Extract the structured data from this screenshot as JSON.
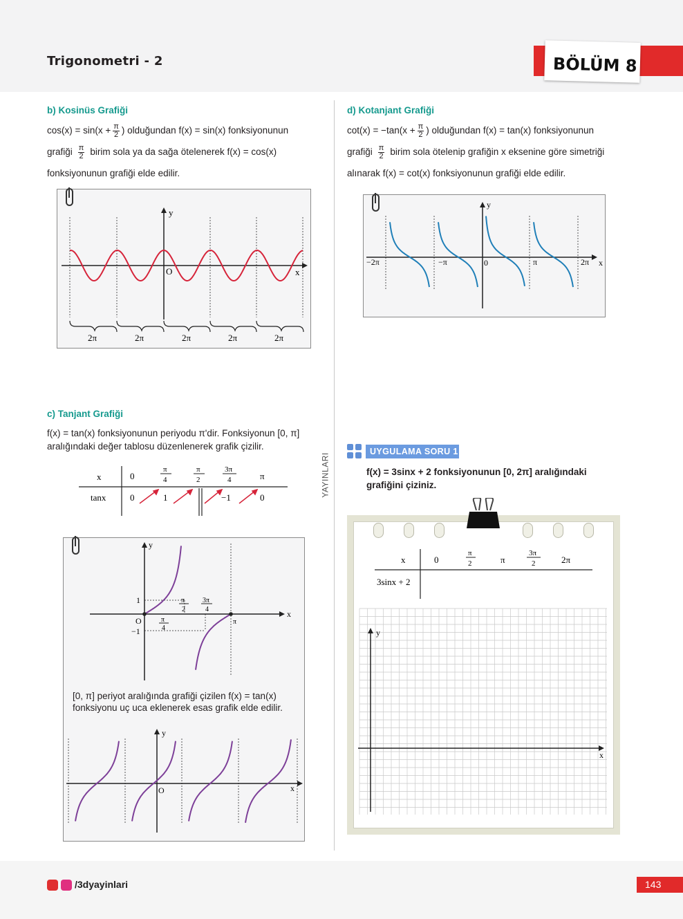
{
  "header": {
    "unit_title": "Trigonometri - 2",
    "chapter": "BÖLÜM 8"
  },
  "colors": {
    "teal": "#169a8e",
    "red": "#e12a2a",
    "cos_curve": "#d6243a",
    "cot_curve": "#1f7fb8",
    "tan_curve": "#7d3f98",
    "badge": "#6b9be0"
  },
  "section_b": {
    "title": "b) Kosinüs Grafiği",
    "line1_a": "cos(x) = sin(x +",
    "line1_b": ") olduğundan f(x) = sin(x) fonksiyonunun",
    "line2_a": "grafiği",
    "line2_b": "birim sola ya da sağa ötelenerek f(x) = cos(x)",
    "line3": "fonksiyonunun grafiği elde edilir.",
    "frac_num": "π",
    "frac_den": "2",
    "graph": {
      "y_label": "y",
      "x_label": "x",
      "origin": "O",
      "brace_labels": [
        "2π",
        "2π",
        "2π",
        "2π",
        "2π"
      ]
    }
  },
  "section_d": {
    "title": "d) Kotanjant Grafiği",
    "line1_a": "cot(x) = −tan(x +",
    "line1_b": ") olduğundan f(x) = tan(x) fonksiyonunun",
    "line2_a": "grafiği",
    "line2_b": "birim sola ötelenip grafiğin x eksenine göre simetriği",
    "line3": "alınarak f(x) = cot(x) fonksiyonunun grafiği elde edilir.",
    "frac_num": "π",
    "frac_den": "2",
    "graph": {
      "y_label": "y",
      "x_label": "x",
      "origin": "0",
      "ticks": [
        "−2π",
        "−π",
        "π",
        "2π"
      ]
    }
  },
  "section_c": {
    "title": "c) Tanjant Grafiği",
    "line1": "f(x) = tan(x) fonksiyonunun periyodu π'dir. Fonksiyonun [0, π]",
    "line2": "aralığındaki değer tablosu düzenlenerek grafik çizilir.",
    "table": {
      "row1_label": "x",
      "row2_label": "tanx",
      "x0": "0",
      "x1_num": "π",
      "x1_den": "4",
      "x2_num": "π",
      "x2_den": "2",
      "x3_num": "3π",
      "x3_den": "4",
      "x4": "π",
      "v0": "0",
      "v1": "1",
      "v3": "−1",
      "v4": "0"
    },
    "graph1": {
      "y_label": "y",
      "x_label": "x",
      "origin": "O",
      "one": "1",
      "minus_one": "−1",
      "pi_over_4_num": "π",
      "pi_over_4_den": "4",
      "pi_over_2_num": "π",
      "pi_over_2_den": "2",
      "three_pi_over_4_num": "3π",
      "three_pi_over_4_den": "4",
      "pi": "π"
    },
    "caption1": "[0, π] periyot aralığında grafiği çizilen f(x) = tan(x)",
    "caption2": "fonksiyonu uç uca eklenerek esas grafik elde edilir.",
    "graph2": {
      "y_label": "y",
      "x_label": "x",
      "origin": "O"
    }
  },
  "side_label": "YAYINLARI",
  "exercise": {
    "badge": "UYGULAMA SORU 1",
    "line1": "f(x) = 3sinx + 2 fonksiyonunun [0, 2π] aralığındaki",
    "line2": "grafiğini çiziniz.",
    "table": {
      "row1_label": "x",
      "row2_label": "3sinx + 2",
      "c0": "0",
      "c1_num": "π",
      "c1_den": "2",
      "c2": "π",
      "c3_num": "3π",
      "c3_den": "2",
      "c4": "2π"
    },
    "grid": {
      "y_label": "y",
      "x_label": "x"
    }
  },
  "footer": {
    "social": "/3dyayinlari",
    "page": "143"
  }
}
